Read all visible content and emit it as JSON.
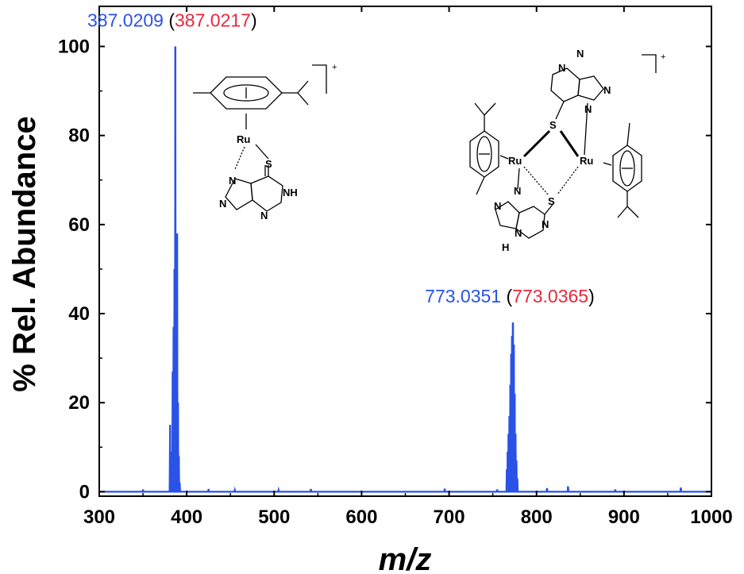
{
  "chart_data": {
    "type": "line",
    "xlabel": "m/z",
    "ylabel": "% Rel. Abundance",
    "xlim": [
      300,
      1000
    ],
    "ylim": [
      -1,
      109
    ],
    "xticks": [
      "300",
      "400",
      "500",
      "600",
      "700",
      "800",
      "900",
      "1000"
    ],
    "yticks": [
      "0",
      "20",
      "40",
      "60",
      "80",
      "100"
    ],
    "grid": false,
    "series_color": "#2a52e6",
    "observed_color": "#2a52e6",
    "calculated_color": "#e8283c",
    "peaks": [
      {
        "x": 381,
        "y": 15
      },
      {
        "x": 382,
        "y": 9
      },
      {
        "x": 383,
        "y": 4
      },
      {
        "x": 384,
        "y": 27
      },
      {
        "x": 385,
        "y": 37
      },
      {
        "x": 386,
        "y": 50
      },
      {
        "x": 387,
        "y": 100
      },
      {
        "x": 388,
        "y": 58
      },
      {
        "x": 389,
        "y": 58
      },
      {
        "x": 390,
        "y": 20
      },
      {
        "x": 391,
        "y": 8
      },
      {
        "x": 392,
        "y": 2
      },
      {
        "x": 766,
        "y": 5
      },
      {
        "x": 767,
        "y": 9
      },
      {
        "x": 768,
        "y": 13
      },
      {
        "x": 769,
        "y": 17
      },
      {
        "x": 770,
        "y": 24
      },
      {
        "x": 771,
        "y": 31
      },
      {
        "x": 772,
        "y": 35
      },
      {
        "x": 773,
        "y": 38
      },
      {
        "x": 774,
        "y": 33
      },
      {
        "x": 775,
        "y": 22
      },
      {
        "x": 776,
        "y": 13
      },
      {
        "x": 777,
        "y": 7
      },
      {
        "x": 778,
        "y": 3
      },
      {
        "x": 350,
        "y": 0.5
      },
      {
        "x": 425,
        "y": 0.6
      },
      {
        "x": 455,
        "y": 0.4
      },
      {
        "x": 505,
        "y": 0.4
      },
      {
        "x": 542,
        "y": 0.6
      },
      {
        "x": 695,
        "y": 0.7
      },
      {
        "x": 755,
        "y": 0.5
      },
      {
        "x": 812,
        "y": 0.8
      },
      {
        "x": 836,
        "y": 1.2
      },
      {
        "x": 890,
        "y": 0.5
      },
      {
        "x": 965,
        "y": 0.9
      }
    ],
    "annotations": [
      {
        "x": 387,
        "y": 100,
        "observed": "387.0209",
        "calculated": "387.0217"
      },
      {
        "x": 773,
        "y": 38,
        "observed": "773.0351",
        "calculated": "773.0365"
      }
    ]
  },
  "structures": {
    "mono": {
      "ru": "Ru",
      "s": "S",
      "nh": "NH",
      "n": "N",
      "charge": "+"
    },
    "dimer": {
      "ru": "Ru",
      "s": "S",
      "n": "N",
      "h": "H",
      "charge": "+"
    }
  }
}
